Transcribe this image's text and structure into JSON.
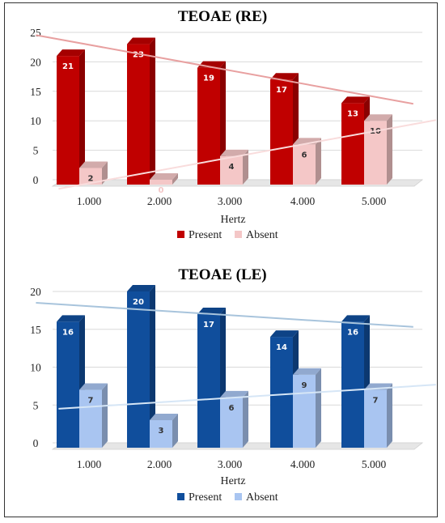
{
  "chart_data": [
    {
      "type": "bar",
      "title": "TEOAE (RE)",
      "xlabel": "Hertz",
      "ylabel": "",
      "categories": [
        "1.000",
        "2.000",
        "3.000",
        "4.000",
        "5.000"
      ],
      "yticks": [
        "0",
        "5",
        "10",
        "15",
        "20",
        "25"
      ],
      "ylim": [
        0,
        25
      ],
      "grid": true,
      "legend_position": "bottom",
      "series": [
        {
          "name": "Present",
          "values": [
            21,
            23,
            19,
            17,
            13
          ],
          "color": "#c00000"
        },
        {
          "name": "Absent",
          "values": [
            2,
            0,
            4,
            6,
            10
          ],
          "color": "#f4c7c7"
        }
      ],
      "trendline_color_present": "#e8a0a0",
      "trendline_color_absent": "#f9dcdc"
    },
    {
      "type": "bar",
      "title": "TEOAE (LE)",
      "xlabel": "Hertz",
      "ylabel": "",
      "categories": [
        "1.000",
        "2.000",
        "3.000",
        "4.000",
        "5.000"
      ],
      "yticks": [
        "0",
        "5",
        "10",
        "15",
        "20"
      ],
      "ylim": [
        0,
        20
      ],
      "grid": true,
      "legend_position": "bottom",
      "series": [
        {
          "name": "Present",
          "values": [
            16,
            20,
            17,
            14,
            16
          ],
          "color": "#104e9c"
        },
        {
          "name": "Absent",
          "values": [
            7,
            3,
            6,
            9,
            7
          ],
          "color": "#a9c5f1"
        }
      ],
      "trendline_color_present": "#a8c4dc",
      "trendline_color_absent": "#d6e6f6"
    }
  ]
}
